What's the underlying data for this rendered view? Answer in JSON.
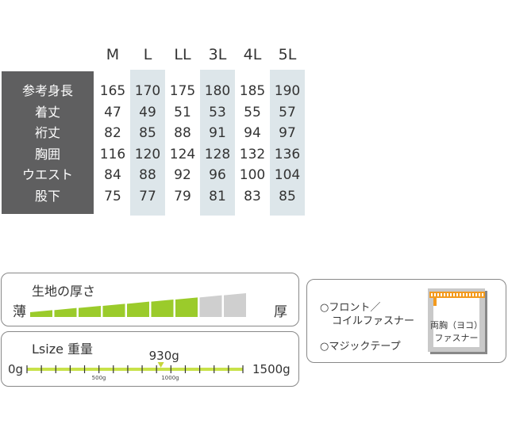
{
  "size_chart": {
    "sizes": [
      "M",
      "L",
      "LL",
      "3L",
      "4L",
      "5L"
    ],
    "rows": [
      {
        "label": "参考身長",
        "values": [
          "165",
          "170",
          "175",
          "180",
          "185",
          "190"
        ]
      },
      {
        "label": "着丈",
        "values": [
          "47",
          "49",
          "51",
          "53",
          "55",
          "57"
        ]
      },
      {
        "label": "裄丈",
        "values": [
          "82",
          "85",
          "88",
          "91",
          "94",
          "97"
        ]
      },
      {
        "label": "胸囲",
        "values": [
          "116",
          "120",
          "124",
          "128",
          "132",
          "136"
        ]
      },
      {
        "label": "ウエスト",
        "values": [
          "84",
          "88",
          "92",
          "96",
          "100",
          "104"
        ]
      },
      {
        "label": "股下",
        "values": [
          "75",
          "77",
          "79",
          "81",
          "83",
          "85"
        ]
      }
    ]
  },
  "thickness": {
    "title": "生地の厚さ",
    "thin_label": "薄",
    "thick_label": "厚",
    "filled_segments": 7,
    "total_segments": 9,
    "fill_color": "#9bcb2b",
    "empty_color": "#cfcfcf"
  },
  "weight": {
    "title": "Lsize 重量",
    "value_label": "930g",
    "value": 930,
    "min_label": "0g",
    "max_label": "1500g",
    "mid_label_500": "500g",
    "mid_label_1000": "1000g",
    "min": 0,
    "max": 1500,
    "line_color": "#c8e24a"
  },
  "closure": {
    "option1_line1": "○フロント／",
    "option1_line2": "コイルファスナー",
    "option2": "○マジックテープ",
    "zip_label_line1": "両胸（ヨコ）",
    "zip_label_line2": "ファスナー",
    "accent_color": "#f39a1e"
  }
}
